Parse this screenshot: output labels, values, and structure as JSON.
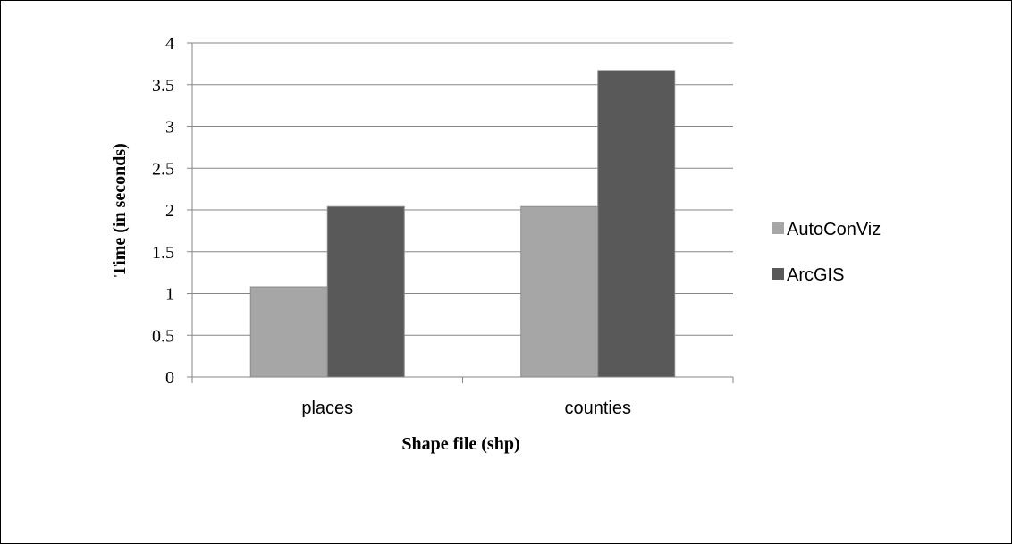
{
  "chart_data": {
    "type": "bar",
    "title": "",
    "xlabel": "Shape file (shp)",
    "ylabel": "Time (in seconds)",
    "categories": [
      "places",
      "counties"
    ],
    "series": [
      {
        "name": "AutoConViz",
        "values": [
          1.08,
          2.04
        ],
        "color": "#a6a6a6"
      },
      {
        "name": "ArcGIS",
        "values": [
          2.04,
          3.67
        ],
        "color": "#595959"
      }
    ],
    "ylim": [
      0,
      4
    ],
    "yticks": [
      "0",
      "0.5",
      "1",
      "1.5",
      "2",
      "2.5",
      "3",
      "3.5",
      "4"
    ],
    "grid": true,
    "legend_position": "right"
  }
}
